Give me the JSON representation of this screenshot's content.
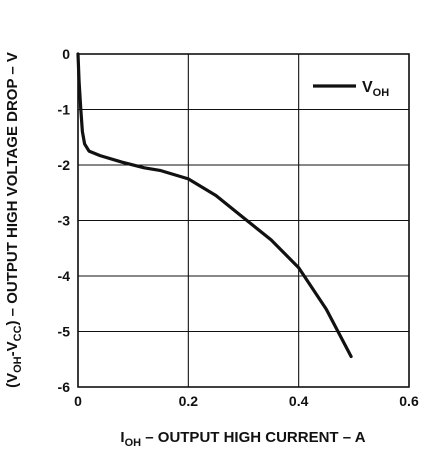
{
  "chart_data": {
    "type": "line",
    "title": "",
    "xlabel": {
      "pre": "I",
      "sub": "OH",
      "post": " – OUTPUT HIGH CURRENT – A"
    },
    "ylabel": {
      "p1": "(V",
      "s1": "OH",
      "p2": "-V",
      "s2": "CC",
      "p3": ") – OUTPUT HIGH VOLTAGE DROP – V"
    },
    "xlim": [
      0,
      0.6
    ],
    "ylim": [
      -6,
      0
    ],
    "xticks": [
      0,
      0.2,
      0.4,
      0.6
    ],
    "xtick_labels": [
      "0",
      "0.2",
      "0.4",
      "0.6"
    ],
    "yticks": [
      0,
      -1,
      -2,
      -3,
      -4,
      -5,
      -6
    ],
    "ytick_labels": [
      "0",
      "-1",
      "-2",
      "-3",
      "-4",
      "-5",
      "-6"
    ],
    "grid": true,
    "legend": {
      "position": "top-right",
      "label_main": "V",
      "label_sub": "OH"
    },
    "series": [
      {
        "name": "VOH",
        "color": "#111111",
        "x": [
          0,
          0.002,
          0.005,
          0.008,
          0.012,
          0.02,
          0.04,
          0.08,
          0.12,
          0.15,
          0.2,
          0.25,
          0.3,
          0.35,
          0.4,
          0.45,
          0.495
        ],
        "y": [
          0,
          -0.5,
          -1.0,
          -1.4,
          -1.62,
          -1.75,
          -1.83,
          -1.95,
          -2.05,
          -2.1,
          -2.25,
          -2.55,
          -2.95,
          -3.35,
          -3.85,
          -4.6,
          -5.45
        ]
      }
    ]
  }
}
